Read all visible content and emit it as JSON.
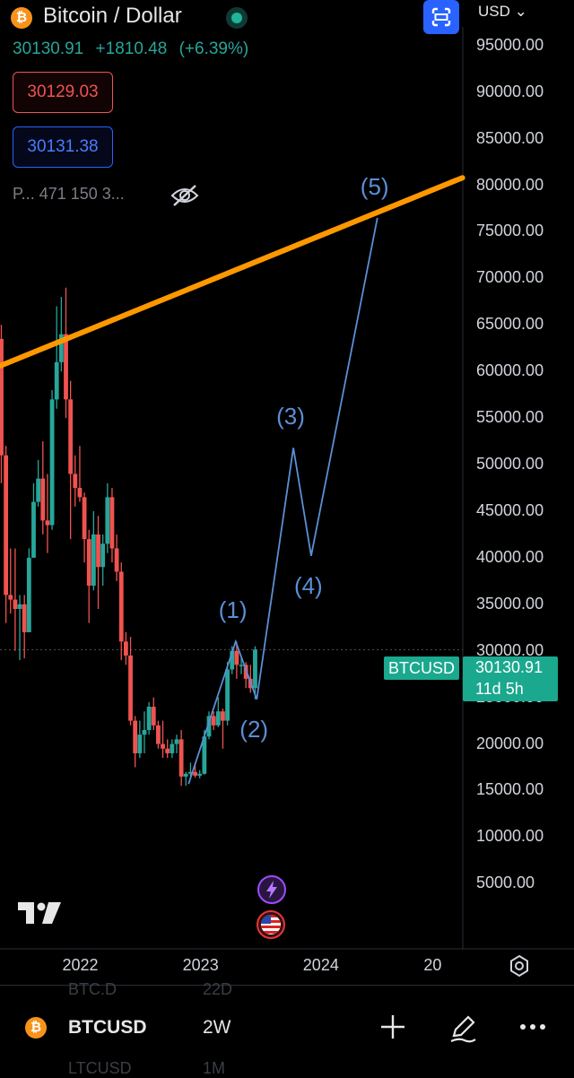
{
  "header": {
    "title": "Bitcoin / Dollar",
    "currency": "USD",
    "last_price": "30130.91",
    "change": "+1810.48",
    "change_pct": "(+6.39%)",
    "sell_price": "30129.03",
    "buy_price": "30131.38",
    "indicator_text": "P... 471 150 3..."
  },
  "price_tag": {
    "symbol": "BTCUSD",
    "price": "30130.91",
    "countdown": "11d 5h"
  },
  "bottom_bar": {
    "symbol": "BTCUSD",
    "interval": "2W",
    "ghost_symbol_top": "BTC.D",
    "ghost_interval_top": "22D",
    "ghost_symbol_bottom": "LTCUSD",
    "ghost_interval_bottom": "1M"
  },
  "colors": {
    "up": "#26a69a",
    "down": "#ef5350",
    "trendline": "#ff9800",
    "wave": "#5b8fd6",
    "accent": "#2962ff",
    "bitcoin": "#f7931a"
  },
  "chart_data": {
    "type": "candlestick",
    "title": "Bitcoin / Dollar",
    "symbol": "BTCUSD",
    "interval": "2W",
    "currency": "USD",
    "y_ticks": [
      "95000.00",
      "90000.00",
      "85000.00",
      "80000.00",
      "75000.00",
      "70000.00",
      "65000.00",
      "60000.00",
      "55000.00",
      "50000.00",
      "45000.00",
      "40000.00",
      "35000.00",
      "30000.00",
      "25000.00",
      "20000.00",
      "15000.00",
      "10000.00",
      "5000.00"
    ],
    "x_ticks": [
      "2022",
      "2023",
      "2024",
      "20"
    ],
    "x_tick_dates": [
      "2022-01-01",
      "2023-01-01",
      "2024-01-01",
      "2025-01-01"
    ],
    "ylim": [
      -2000,
      97000
    ],
    "xlim": [
      "2021-04-27",
      "2025-03-01"
    ],
    "grid": false,
    "current_price": 30130.91,
    "candles": [
      {
        "date": "2021-05-01",
        "o": 63500,
        "h": 65000,
        "l": 48000,
        "c": 51000
      },
      {
        "date": "2021-05-15",
        "o": 51000,
        "h": 52000,
        "l": 33000,
        "c": 36000
      },
      {
        "date": "2021-05-29",
        "o": 36000,
        "h": 41000,
        "l": 34000,
        "c": 35500
      },
      {
        "date": "2021-06-12",
        "o": 35500,
        "h": 41000,
        "l": 30000,
        "c": 34500
      },
      {
        "date": "2021-06-26",
        "o": 34500,
        "h": 36000,
        "l": 29000,
        "c": 35000
      },
      {
        "date": "2021-07-10",
        "o": 35000,
        "h": 36000,
        "l": 29200,
        "c": 32000
      },
      {
        "date": "2021-07-24",
        "o": 32000,
        "h": 41000,
        "l": 32000,
        "c": 40000
      },
      {
        "date": "2021-08-07",
        "o": 40000,
        "h": 48000,
        "l": 40000,
        "c": 46000
      },
      {
        "date": "2021-08-21",
        "o": 46000,
        "h": 50500,
        "l": 45500,
        "c": 48500
      },
      {
        "date": "2021-09-04",
        "o": 48500,
        "h": 52500,
        "l": 42500,
        "c": 44000
      },
      {
        "date": "2021-09-18",
        "o": 44000,
        "h": 49000,
        "l": 40500,
        "c": 43500
      },
      {
        "date": "2021-10-02",
        "o": 43500,
        "h": 58000,
        "l": 43000,
        "c": 57000
      },
      {
        "date": "2021-10-16",
        "o": 57000,
        "h": 67000,
        "l": 56000,
        "c": 61000
      },
      {
        "date": "2021-10-30",
        "o": 61000,
        "h": 68000,
        "l": 60000,
        "c": 64000
      },
      {
        "date": "2021-11-13",
        "o": 64000,
        "h": 69000,
        "l": 55000,
        "c": 57000
      },
      {
        "date": "2021-11-27",
        "o": 57000,
        "h": 59000,
        "l": 42000,
        "c": 49000
      },
      {
        "date": "2021-12-11",
        "o": 49000,
        "h": 51000,
        "l": 45500,
        "c": 47500
      },
      {
        "date": "2021-12-25",
        "o": 47500,
        "h": 52000,
        "l": 46000,
        "c": 46500
      },
      {
        "date": "2022-01-08",
        "o": 46500,
        "h": 47000,
        "l": 39500,
        "c": 42000
      },
      {
        "date": "2022-01-22",
        "o": 42000,
        "h": 43000,
        "l": 33000,
        "c": 37000
      },
      {
        "date": "2022-02-05",
        "o": 37000,
        "h": 45000,
        "l": 36500,
        "c": 42500
      },
      {
        "date": "2022-02-19",
        "o": 42500,
        "h": 44500,
        "l": 34500,
        "c": 39000
      },
      {
        "date": "2022-03-05",
        "o": 39000,
        "h": 42500,
        "l": 37000,
        "c": 41500
      },
      {
        "date": "2022-03-19",
        "o": 41500,
        "h": 48000,
        "l": 40500,
        "c": 46500
      },
      {
        "date": "2022-04-02",
        "o": 46500,
        "h": 47500,
        "l": 39500,
        "c": 41000
      },
      {
        "date": "2022-04-16",
        "o": 41000,
        "h": 42500,
        "l": 37500,
        "c": 38500
      },
      {
        "date": "2022-04-30",
        "o": 38500,
        "h": 39500,
        "l": 29000,
        "c": 31000
      },
      {
        "date": "2022-05-14",
        "o": 31000,
        "h": 32000,
        "l": 28500,
        "c": 29500
      },
      {
        "date": "2022-05-28",
        "o": 29500,
        "h": 31500,
        "l": 22000,
        "c": 22500
      },
      {
        "date": "2022-06-11",
        "o": 22500,
        "h": 23000,
        "l": 17500,
        "c": 19000
      },
      {
        "date": "2022-06-25",
        "o": 19000,
        "h": 22500,
        "l": 18500,
        "c": 21000
      },
      {
        "date": "2022-07-09",
        "o": 21000,
        "h": 23500,
        "l": 19000,
        "c": 21500
      },
      {
        "date": "2022-07-23",
        "o": 21500,
        "h": 24500,
        "l": 21000,
        "c": 24000
      },
      {
        "date": "2022-08-06",
        "o": 24000,
        "h": 25000,
        "l": 21500,
        "c": 22000
      },
      {
        "date": "2022-08-20",
        "o": 22000,
        "h": 22500,
        "l": 19500,
        "c": 20000
      },
      {
        "date": "2022-09-03",
        "o": 20000,
        "h": 22500,
        "l": 18500,
        "c": 19500
      },
      {
        "date": "2022-09-17",
        "o": 19500,
        "h": 20500,
        "l": 18500,
        "c": 19000
      },
      {
        "date": "2022-10-01",
        "o": 19000,
        "h": 20500,
        "l": 18500,
        "c": 20000
      },
      {
        "date": "2022-10-15",
        "o": 20000,
        "h": 21000,
        "l": 19000,
        "c": 20500
      },
      {
        "date": "2022-10-29",
        "o": 20500,
        "h": 21500,
        "l": 15500,
        "c": 16500
      },
      {
        "date": "2022-11-12",
        "o": 16500,
        "h": 17000,
        "l": 15500,
        "c": 16800
      },
      {
        "date": "2022-11-26",
        "o": 16800,
        "h": 18000,
        "l": 16500,
        "c": 17000
      },
      {
        "date": "2022-12-10",
        "o": 17000,
        "h": 17800,
        "l": 16400,
        "c": 16600
      },
      {
        "date": "2022-12-24",
        "o": 16600,
        "h": 17200,
        "l": 16300,
        "c": 16800
      },
      {
        "date": "2023-01-07",
        "o": 16800,
        "h": 21500,
        "l": 16700,
        "c": 20800
      },
      {
        "date": "2023-01-21",
        "o": 20800,
        "h": 23500,
        "l": 20500,
        "c": 23000
      },
      {
        "date": "2023-02-04",
        "o": 23000,
        "h": 23500,
        "l": 21500,
        "c": 22000
      },
      {
        "date": "2023-02-18",
        "o": 22000,
        "h": 25000,
        "l": 21800,
        "c": 23500
      },
      {
        "date": "2023-03-04",
        "o": 23500,
        "h": 23800,
        "l": 19500,
        "c": 22500
      },
      {
        "date": "2023-03-18",
        "o": 22500,
        "h": 28800,
        "l": 22000,
        "c": 28000
      },
      {
        "date": "2023-04-01",
        "o": 28000,
        "h": 30500,
        "l": 27500,
        "c": 30000
      },
      {
        "date": "2023-04-15",
        "o": 30000,
        "h": 31000,
        "l": 27000,
        "c": 28500
      },
      {
        "date": "2023-04-29",
        "o": 28500,
        "h": 29500,
        "l": 27500,
        "c": 28500
      },
      {
        "date": "2023-05-13",
        "o": 28500,
        "h": 28800,
        "l": 26000,
        "c": 27000
      },
      {
        "date": "2023-05-27",
        "o": 27000,
        "h": 28500,
        "l": 25500,
        "c": 26000
      },
      {
        "date": "2023-06-10",
        "o": 26000,
        "h": 30500,
        "l": 24800,
        "c": 30130.91
      }
    ],
    "trendline": {
      "points": [
        {
          "date": "2021-04-27",
          "y": 60600
        },
        {
          "date": "2025-02-28",
          "y": 80800
        }
      ]
    },
    "elliott_wave": {
      "labels": [
        "(1)",
        "(2)",
        "(3)",
        "(4)",
        "(5)"
      ],
      "points": [
        {
          "date": "2022-11-20",
          "y": 15700
        },
        {
          "date": "2023-04-12",
          "y": 31000
        },
        {
          "date": "2023-06-15",
          "y": 24800
        },
        {
          "date": "2023-10-04",
          "y": 51800
        },
        {
          "date": "2023-11-27",
          "y": 40200
        },
        {
          "date": "2024-06-15",
          "y": 76500
        }
      ]
    }
  }
}
